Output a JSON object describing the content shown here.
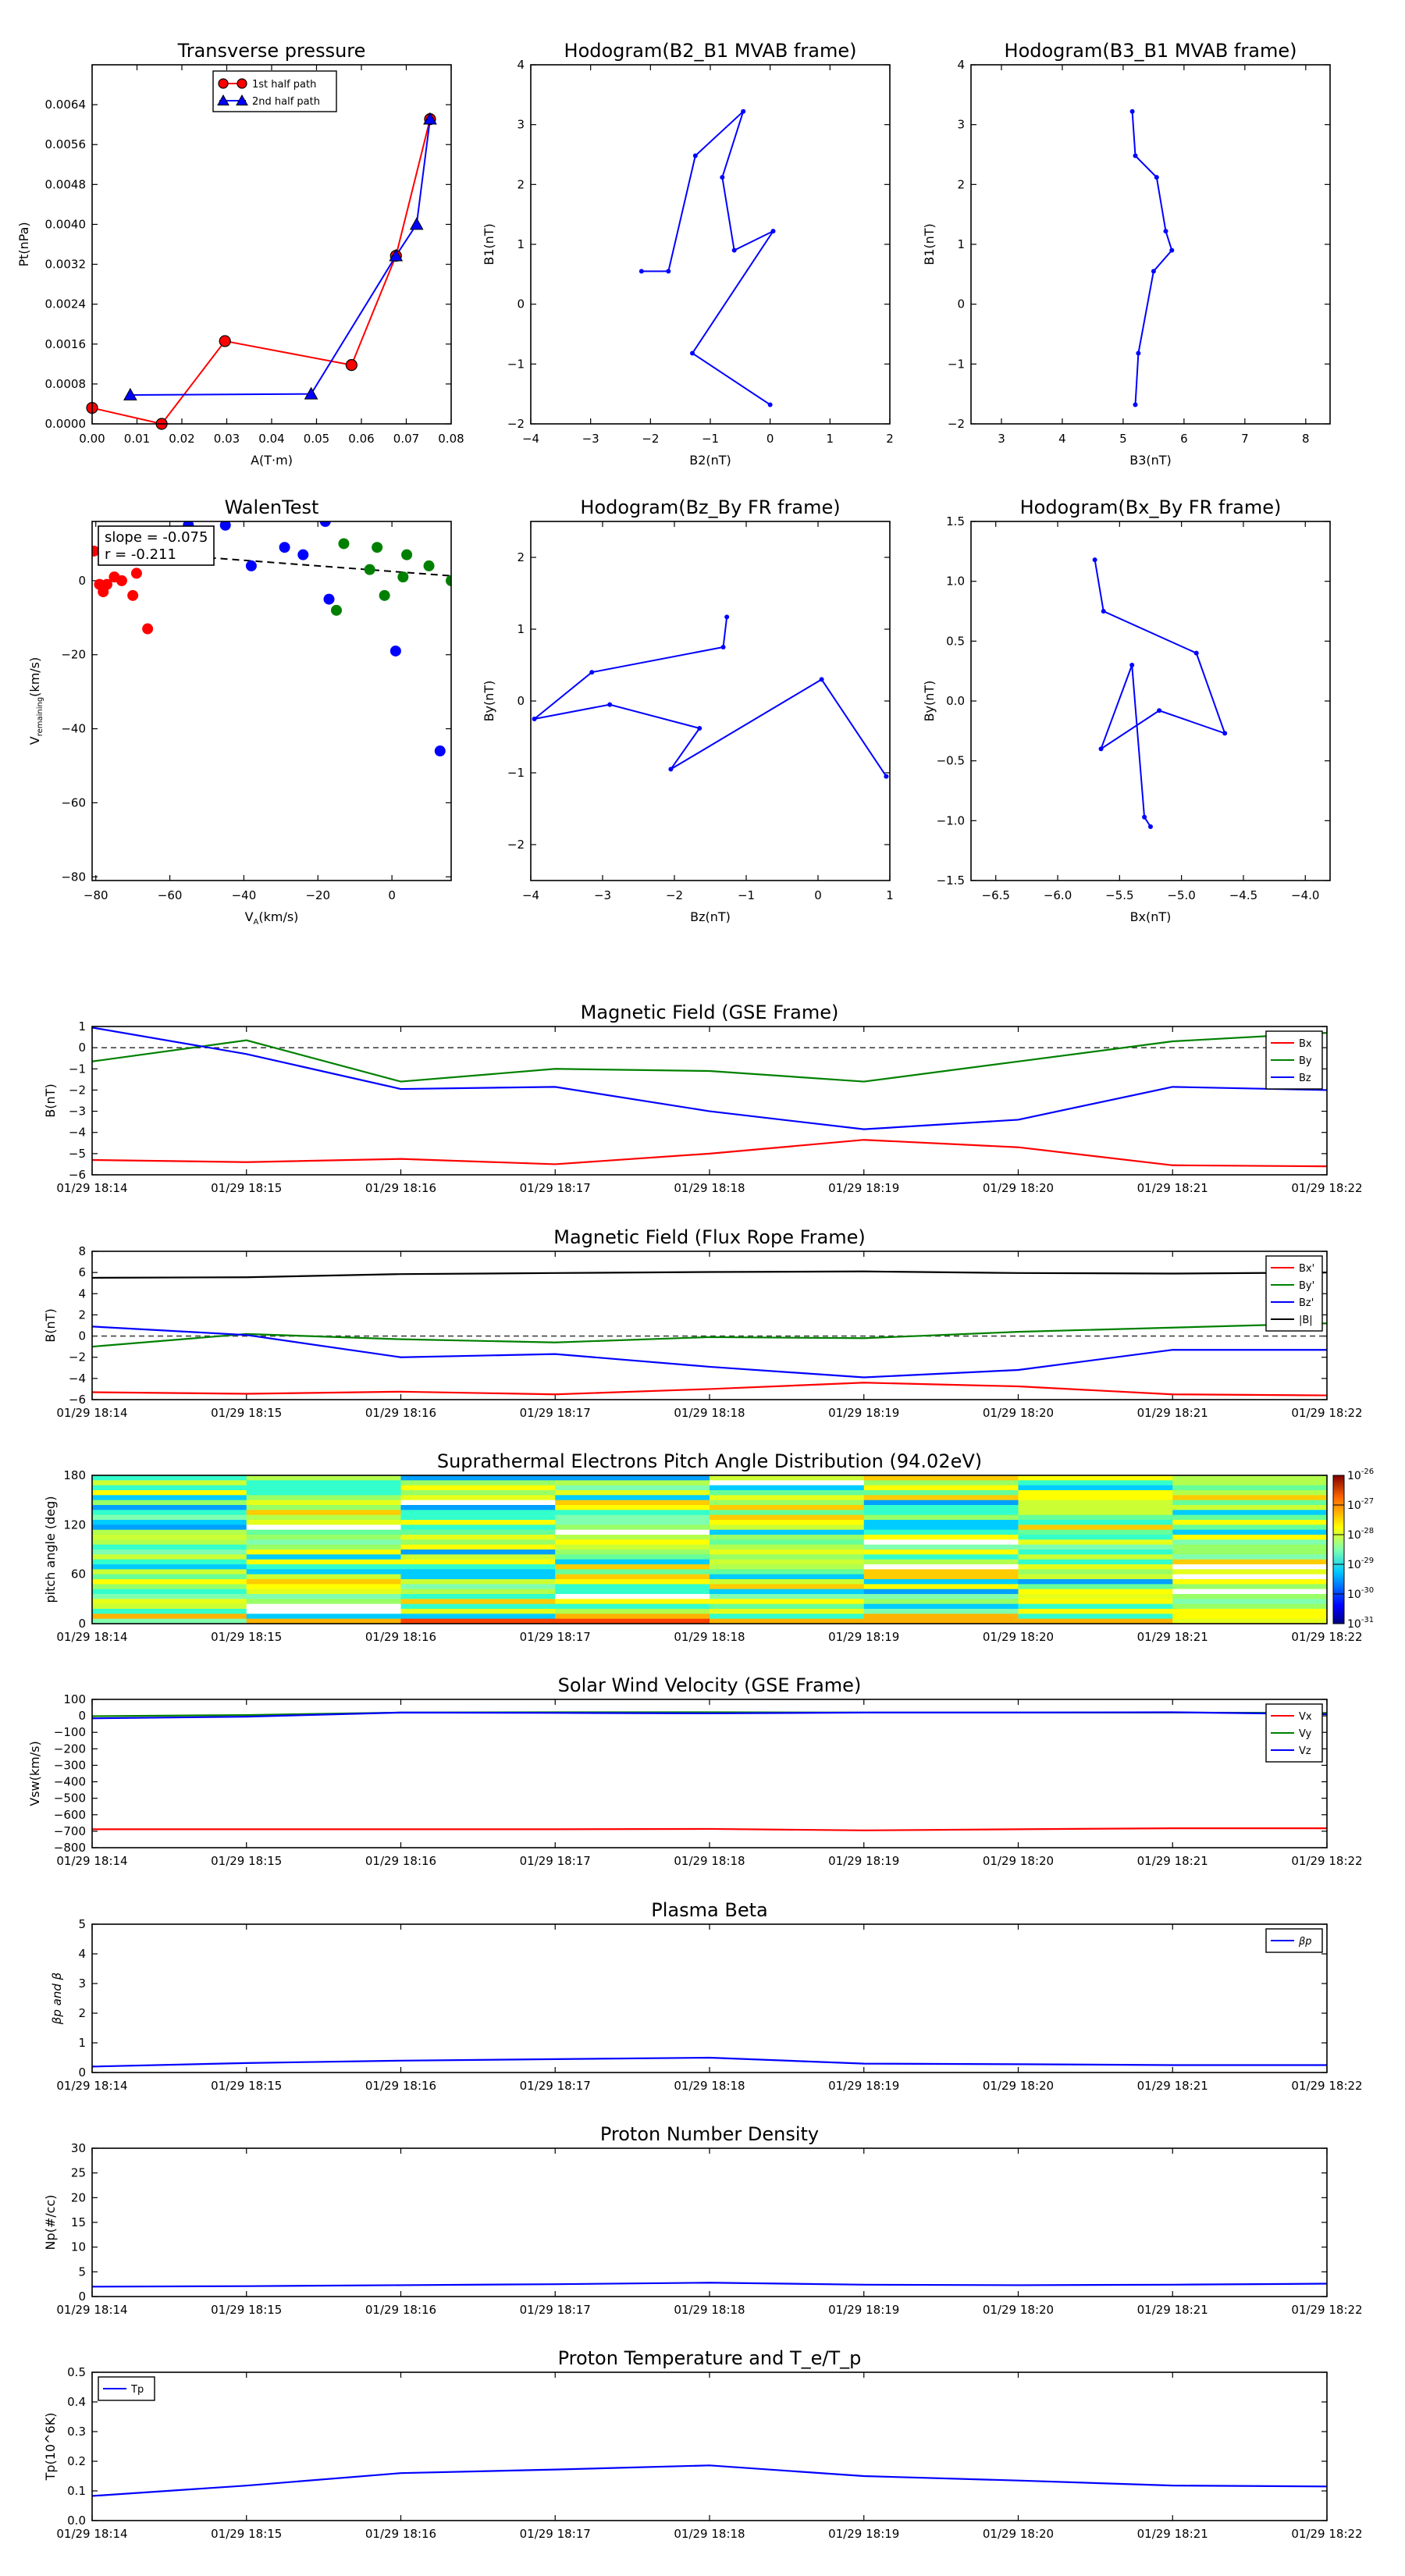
{
  "colors": {
    "red": "#ff0000",
    "green": "#008000",
    "blue": "#0000ff",
    "black": "#000000"
  },
  "chart_data": [
    {
      "id": "pt",
      "type": "line",
      "title": "Transverse pressure",
      "xlabel": "A(T·m)",
      "ylabel": "Pt(nPa)",
      "xlim": [
        0,
        0.08
      ],
      "ylim": [
        0,
        0.0072
      ],
      "xticks": [
        "0.00",
        "0.01",
        "0.02",
        "0.03",
        "0.04",
        "0.05",
        "0.06",
        "0.07",
        "0.08"
      ],
      "yticks": [
        "0.0000",
        "0.0008",
        "0.0016",
        "0.0024",
        "0.0032",
        "0.0040",
        "0.0048",
        "0.0056",
        "0.0064"
      ],
      "legend": "top-center",
      "series": [
        {
          "name": "1st half path",
          "color": "red",
          "marker": "circle",
          "x": [
            0.0,
            0.0155,
            0.0296,
            0.0578,
            0.0677,
            0.0753
          ],
          "y": [
            0.00032,
            0.0,
            0.00166,
            0.00118,
            0.00337,
            0.00611
          ]
        },
        {
          "name": "2nd half path",
          "color": "blue",
          "marker": "triangle",
          "x": [
            0.0753,
            0.0723,
            0.0677,
            0.0488,
            0.0085
          ],
          "y": [
            0.00611,
            0.004,
            0.00337,
            0.0006,
            0.00058
          ]
        }
      ]
    },
    {
      "id": "h21",
      "type": "line",
      "title": "Hodogram(B2_B1 MVAB frame)",
      "xlabel": "B2(nT)",
      "ylabel": "B1(nT)",
      "xlim": [
        -4,
        2
      ],
      "ylim": [
        -2,
        4
      ],
      "xticks": [
        "−4",
        "−3",
        "−2",
        "−1",
        "0",
        "1",
        "2"
      ],
      "yticks": [
        "−2",
        "−1",
        "0",
        "1",
        "2",
        "3",
        "4"
      ],
      "series": [
        {
          "color": "blue",
          "marker": "dot",
          "x": [
            -2.15,
            -1.7,
            -1.25,
            -0.45,
            -0.8,
            -0.6,
            0.05,
            -1.3,
            0.0
          ],
          "y": [
            0.55,
            0.55,
            2.48,
            3.22,
            2.12,
            0.9,
            1.22,
            -0.82,
            -1.68
          ]
        }
      ]
    },
    {
      "id": "h31",
      "type": "line",
      "title": "Hodogram(B3_B1 MVAB frame)",
      "xlabel": "B3(nT)",
      "ylabel": "B1(nT)",
      "xlim": [
        2.5,
        8.4
      ],
      "ylim": [
        -2,
        4
      ],
      "xticks": [
        "3",
        "4",
        "5",
        "6",
        "7",
        "8"
      ],
      "yticks": [
        "−2",
        "−1",
        "0",
        "1",
        "2",
        "3",
        "4"
      ],
      "series": [
        {
          "color": "blue",
          "marker": "dot",
          "x": [
            5.15,
            5.2,
            5.55,
            5.7,
            5.8,
            5.5,
            5.25,
            5.2
          ],
          "y": [
            3.22,
            2.48,
            2.12,
            1.22,
            0.9,
            0.55,
            -0.82,
            -1.68
          ]
        }
      ]
    },
    {
      "id": "walen",
      "type": "scatter",
      "title": "WalenTest",
      "xlabel": "V_A(km/s)",
      "ylabel": "V_remaining(km/s)",
      "xlim": [
        -81,
        16
      ],
      "ylim": [
        -81,
        16
      ],
      "xticks": [
        "−80",
        "−60",
        "−40",
        "−20",
        "0"
      ],
      "yticks": [
        "−80",
        "−60",
        "−40",
        "−20",
        "0"
      ],
      "annotation": [
        "slope = -0.075",
        "r = -0.211"
      ],
      "fit": {
        "slope": -0.075,
        "intercept": 2.5
      },
      "series": [
        {
          "color": "red",
          "x": [
            -80.5,
            -79,
            -78,
            -77,
            -75,
            -73,
            -70,
            -69,
            -66
          ],
          "y": [
            8,
            -1,
            -3,
            -1,
            1,
            0,
            -4,
            2,
            -13
          ]
        },
        {
          "color": "green",
          "x": [
            -15,
            -13,
            -6,
            -4,
            -2,
            3,
            4,
            10,
            16
          ],
          "y": [
            -8,
            10,
            3,
            9,
            -4,
            1,
            7,
            4,
            0
          ]
        },
        {
          "color": "blue",
          "x": [
            -45,
            -38,
            -29,
            -24,
            -18,
            -17,
            1,
            13,
            -55
          ],
          "y": [
            15,
            4,
            9,
            7,
            16,
            -5,
            -19,
            -46,
            15
          ]
        }
      ]
    },
    {
      "id": "hzy",
      "type": "line",
      "title": "Hodogram(Bz_By FR frame)",
      "xlabel": "Bz(nT)",
      "ylabel": "By(nT)",
      "xlim": [
        -4,
        1
      ],
      "ylim": [
        -2.5,
        2.5
      ],
      "xticks": [
        "−4",
        "−3",
        "−2",
        "−1",
        "0",
        "1"
      ],
      "yticks": [
        "−2",
        "−1",
        "0",
        "1",
        "2"
      ],
      "series": [
        {
          "color": "blue",
          "marker": "dot",
          "x": [
            -1.27,
            -1.32,
            -3.15,
            -3.95,
            -2.9,
            -1.65,
            -2.05,
            0.05,
            0.95
          ],
          "y": [
            1.17,
            0.75,
            0.4,
            -0.25,
            -0.05,
            -0.38,
            -0.95,
            0.3,
            -1.05
          ]
        }
      ]
    },
    {
      "id": "hxy",
      "type": "line",
      "title": "Hodogram(Bx_By FR frame)",
      "xlabel": "Bx(nT)",
      "ylabel": "By(nT)",
      "xlim": [
        -6.7,
        -3.8
      ],
      "ylim": [
        -1.5,
        1.5
      ],
      "xticks": [
        "−6.5",
        "−6.0",
        "−5.5",
        "−5.0",
        "−4.5",
        "−4.0"
      ],
      "yticks": [
        "−1.5",
        "−1.0",
        "−0.5",
        "0.0",
        "0.5",
        "1.0",
        "1.5"
      ],
      "series": [
        {
          "color": "blue",
          "marker": "dot",
          "x": [
            -5.7,
            -5.63,
            -4.88,
            -4.65,
            -5.18,
            -5.65,
            -5.4,
            -5.3,
            -5.25
          ],
          "y": [
            1.18,
            0.75,
            0.4,
            -0.27,
            -0.08,
            -0.4,
            0.3,
            -0.97,
            -1.05
          ]
        }
      ]
    },
    {
      "id": "bgse",
      "type": "line",
      "title": "Magnetic Field (GSE Frame)",
      "xlabel": "",
      "ylabel": "B(nT)",
      "x": [
        "01/29 18:14",
        "01/29 18:15",
        "01/29 18:16",
        "01/29 18:17",
        "01/29 18:18",
        "01/29 18:19",
        "01/29 18:20",
        "01/29 18:21",
        "01/29 18:22"
      ],
      "ylim": [
        -6,
        1
      ],
      "yticks": [
        "1",
        "0",
        "−1",
        "−2",
        "−3",
        "−4",
        "−5",
        "−6"
      ],
      "zero_line": true,
      "legend": "top-right",
      "series": [
        {
          "name": "Bx",
          "color": "red",
          "values": [
            -5.3,
            -5.4,
            -5.25,
            -5.5,
            -5.0,
            -4.35,
            -4.7,
            -5.55,
            -5.6
          ]
        },
        {
          "name": "By",
          "color": "green",
          "values": [
            -0.65,
            0.35,
            -1.6,
            -1.0,
            -1.1,
            -1.6,
            -0.65,
            0.3,
            0.7
          ]
        },
        {
          "name": "Bz",
          "color": "blue",
          "values": [
            0.95,
            -0.3,
            -1.95,
            -1.85,
            -3.0,
            -3.85,
            -3.4,
            -1.85,
            -2.0
          ]
        }
      ]
    },
    {
      "id": "bfr",
      "type": "line",
      "title": "Magnetic Field (Flux Rope Frame)",
      "xlabel": "",
      "ylabel": "B(nT)",
      "x": [
        "01/29 18:14",
        "01/29 18:15",
        "01/29 18:16",
        "01/29 18:17",
        "01/29 18:18",
        "01/29 18:19",
        "01/29 18:20",
        "01/29 18:21",
        "01/29 18:22"
      ],
      "ylim": [
        -6,
        8
      ],
      "yticks": [
        "8",
        "6",
        "4",
        "2",
        "0",
        "−2",
        "−4",
        "−6"
      ],
      "zero_line": true,
      "legend": "top-right",
      "series": [
        {
          "name": "Bx'",
          "color": "red",
          "values": [
            -5.3,
            -5.45,
            -5.25,
            -5.5,
            -5.0,
            -4.4,
            -4.75,
            -5.5,
            -5.6
          ]
        },
        {
          "name": "By'",
          "color": "green",
          "values": [
            -1.0,
            0.2,
            -0.3,
            -0.6,
            -0.1,
            -0.2,
            0.4,
            0.8,
            1.2
          ]
        },
        {
          "name": "Bz'",
          "color": "blue",
          "values": [
            0.9,
            0.1,
            -2.0,
            -1.7,
            -2.9,
            -3.9,
            -3.2,
            -1.3,
            -1.3
          ]
        },
        {
          "name": "|B|",
          "color": "black",
          "values": [
            5.5,
            5.55,
            5.85,
            5.95,
            6.05,
            6.1,
            5.95,
            5.9,
            6.0
          ]
        }
      ]
    },
    {
      "id": "pad",
      "type": "heatmap",
      "title": "Suprathermal Electrons Pitch Angle Distribution (94.02eV)",
      "ylabel": "pitch angle (deg)",
      "x": [
        "01/29 18:14",
        "01/29 18:15",
        "01/29 18:16",
        "01/29 18:17",
        "01/29 18:18",
        "01/29 18:19",
        "01/29 18:20",
        "01/29 18:21",
        "01/29 18:22"
      ],
      "ylim": [
        0,
        180
      ],
      "yticks": [
        "180",
        "120",
        "60",
        "0"
      ],
      "colorbar": {
        "log_range": [
          -31,
          -26
        ],
        "labels": [
          "10",
          "10",
          "10",
          "10",
          "10",
          "10"
        ],
        "exponents": [
          "-26",
          "-27",
          "-28",
          "-29",
          "-30",
          "-31"
        ]
      }
    },
    {
      "id": "vsw",
      "type": "line",
      "title": "Solar Wind Velocity (GSE Frame)",
      "xlabel": "",
      "ylabel": "Vsw(km/s)",
      "x": [
        "01/29 18:14",
        "01/29 18:15",
        "01/29 18:16",
        "01/29 18:17",
        "01/29 18:18",
        "01/29 18:19",
        "01/29 18:20",
        "01/29 18:21",
        "01/29 18:22"
      ],
      "ylim": [
        -800,
        100
      ],
      "yticks": [
        "100",
        "0",
        "−100",
        "−200",
        "−300",
        "−400",
        "−500",
        "−600",
        "−700",
        "−800"
      ],
      "legend": "top-right",
      "series": [
        {
          "name": "Vx",
          "color": "red",
          "values": [
            -688,
            -688,
            -688,
            -688,
            -686,
            -695,
            -688,
            -682,
            -682
          ]
        },
        {
          "name": "Vy",
          "color": "green",
          "values": [
            -2,
            5,
            20,
            22,
            22,
            20,
            20,
            20,
            18
          ]
        },
        {
          "name": "Vz",
          "color": "blue",
          "values": [
            -15,
            -5,
            20,
            18,
            15,
            20,
            20,
            22,
            10
          ]
        }
      ]
    },
    {
      "id": "beta",
      "type": "line",
      "title": "Plasma Beta",
      "xlabel": "",
      "ylabel": "βp and β",
      "x": [
        "01/29 18:14",
        "01/29 18:15",
        "01/29 18:16",
        "01/29 18:17",
        "01/29 18:18",
        "01/29 18:19",
        "01/29 18:20",
        "01/29 18:21",
        "01/29 18:22"
      ],
      "ylim": [
        0,
        5
      ],
      "yticks": [
        "5",
        "4",
        "3",
        "2",
        "1",
        "0"
      ],
      "legend": "top-right",
      "series": [
        {
          "name": "βp",
          "color": "blue",
          "values": [
            0.2,
            0.32,
            0.4,
            0.45,
            0.5,
            0.3,
            0.28,
            0.25,
            0.25
          ]
        }
      ]
    },
    {
      "id": "np",
      "type": "line",
      "title": "Proton Number Density",
      "xlabel": "",
      "ylabel": "Np(#/cc)",
      "x": [
        "01/29 18:14",
        "01/29 18:15",
        "01/29 18:16",
        "01/29 18:17",
        "01/29 18:18",
        "01/29 18:19",
        "01/29 18:20",
        "01/29 18:21",
        "01/29 18:22"
      ],
      "ylim": [
        0,
        30
      ],
      "yticks": [
        "30",
        "25",
        "20",
        "15",
        "10",
        "5",
        "0"
      ],
      "series": [
        {
          "name": "Np",
          "color": "blue",
          "values": [
            2.0,
            2.1,
            2.3,
            2.5,
            2.8,
            2.4,
            2.3,
            2.4,
            2.6
          ]
        }
      ]
    },
    {
      "id": "tp",
      "type": "line",
      "title": "Proton Temperature and T_e/T_p",
      "xlabel": "",
      "ylabel": "Tp(10^6K)",
      "x": [
        "01/29 18:14",
        "01/29 18:15",
        "01/29 18:16",
        "01/29 18:17",
        "01/29 18:18",
        "01/29 18:19",
        "01/29 18:20",
        "01/29 18:21",
        "01/29 18:22"
      ],
      "ylim": [
        0,
        0.5
      ],
      "yticks": [
        "0.5",
        "0.4",
        "0.3",
        "0.2",
        "0.1",
        "0.0"
      ],
      "legend": "top-left",
      "series": [
        {
          "name": "Tp",
          "color": "blue",
          "values": [
            0.083,
            0.118,
            0.16,
            0.172,
            0.186,
            0.15,
            0.135,
            0.118,
            0.115
          ]
        }
      ]
    }
  ]
}
